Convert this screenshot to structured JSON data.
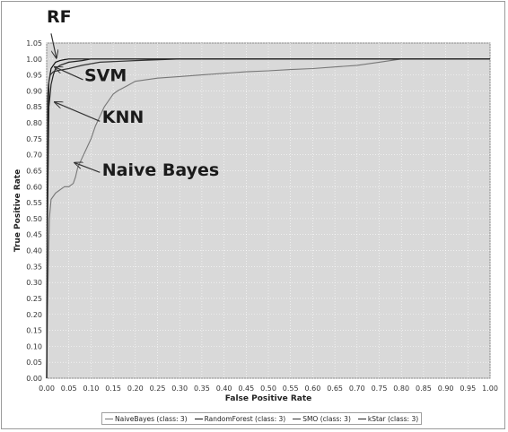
{
  "chart_data": {
    "type": "line",
    "xlabel": "False Positive Rate",
    "ylabel": "True Positive Rate",
    "xlim": [
      0,
      1
    ],
    "ylim": [
      0,
      1.05
    ],
    "x_ticks": [
      "0.00",
      "0.05",
      "0.10",
      "0.15",
      "0.20",
      "0.25",
      "0.30",
      "0.35",
      "0.40",
      "0.45",
      "0.50",
      "0.55",
      "0.60",
      "0.65",
      "0.70",
      "0.75",
      "0.80",
      "0.85",
      "0.90",
      "0.95",
      "1.00"
    ],
    "y_ticks": [
      "0.00",
      "0.05",
      "0.10",
      "0.15",
      "0.20",
      "0.25",
      "0.30",
      "0.35",
      "0.40",
      "0.45",
      "0.50",
      "0.55",
      "0.60",
      "0.65",
      "0.70",
      "0.75",
      "0.80",
      "0.85",
      "0.90",
      "0.95",
      "1.00",
      "1.05"
    ],
    "grid": true,
    "legend_position": "bottom",
    "series": [
      {
        "name": "NaiveBayes (class: 3)",
        "color": "#777777",
        "x": [
          0,
          0.003,
          0.006,
          0.01,
          0.02,
          0.03,
          0.04,
          0.05,
          0.06,
          0.065,
          0.07,
          0.08,
          0.09,
          0.1,
          0.11,
          0.12,
          0.13,
          0.14,
          0.15,
          0.16,
          0.18,
          0.2,
          0.25,
          0.3,
          0.35,
          0.4,
          0.45,
          0.5,
          0.55,
          0.6,
          0.65,
          0.7,
          0.75,
          0.8,
          0.9,
          1.0
        ],
        "y": [
          0,
          0.3,
          0.5,
          0.56,
          0.58,
          0.59,
          0.6,
          0.6,
          0.61,
          0.63,
          0.66,
          0.69,
          0.72,
          0.75,
          0.79,
          0.82,
          0.85,
          0.87,
          0.89,
          0.9,
          0.915,
          0.93,
          0.94,
          0.945,
          0.95,
          0.955,
          0.96,
          0.963,
          0.967,
          0.97,
          0.975,
          0.98,
          0.99,
          1.0,
          1.0,
          1.0
        ]
      },
      {
        "name": "RandomForest (class: 3)",
        "color": "#111111",
        "x": [
          0,
          0.002,
          0.005,
          0.01,
          0.015,
          0.02,
          0.03,
          0.04,
          0.05,
          0.1,
          0.2,
          0.5,
          1.0
        ],
        "y": [
          0,
          0.6,
          0.93,
          0.97,
          0.98,
          0.99,
          0.995,
          0.998,
          1.0,
          1.0,
          1.0,
          1.0,
          1.0
        ]
      },
      {
        "name": "SMO (class: 3)",
        "color": "#333333",
        "x": [
          0,
          0.002,
          0.004,
          0.008,
          0.015,
          0.03,
          0.05,
          0.08,
          0.12,
          0.2,
          0.3,
          0.5,
          1.0
        ],
        "y": [
          0,
          0.88,
          0.92,
          0.95,
          0.96,
          0.965,
          0.97,
          0.98,
          0.99,
          0.995,
          1.0,
          1.0,
          1.0
        ]
      },
      {
        "name": "kStar (class: 3)",
        "color": "#222222",
        "x": [
          0,
          0.002,
          0.005,
          0.01,
          0.015,
          0.02,
          0.03,
          0.05,
          0.08,
          0.1,
          0.2,
          0.5,
          1.0
        ],
        "y": [
          0,
          0.5,
          0.85,
          0.92,
          0.95,
          0.97,
          0.98,
          0.99,
          0.995,
          1.0,
          1.0,
          1.0,
          1.0
        ]
      }
    ],
    "annotations": [
      {
        "text": "RF",
        "tx": 0.0,
        "ty": 1.115,
        "ax": 0.01,
        "ay": 1.08,
        "px": 0.022,
        "py": 1.003
      },
      {
        "text": "SVM",
        "tx": 0.085,
        "ty": 0.93,
        "ax": 0.082,
        "ay": 0.935,
        "px": 0.018,
        "py": 0.975
      },
      {
        "text": "KNN",
        "tx": 0.125,
        "ty": 0.8,
        "ax": 0.12,
        "ay": 0.805,
        "px": 0.018,
        "py": 0.865
      },
      {
        "text": "Naive Bayes",
        "tx": 0.125,
        "ty": 0.635,
        "ax": 0.12,
        "ay": 0.645,
        "px": 0.063,
        "py": 0.675
      }
    ]
  }
}
